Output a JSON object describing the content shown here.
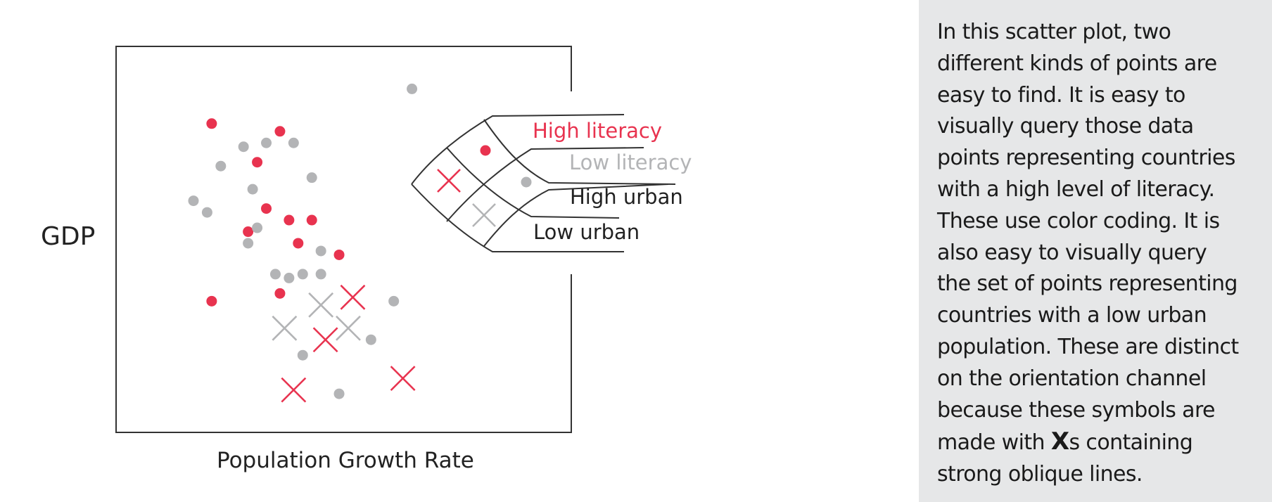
{
  "chart_data": {
    "type": "scatter",
    "xlabel": "Population Growth Rate",
    "ylabel": "GDP",
    "legend_placement": "right",
    "colors": {
      "high_literacy": "#e8334f",
      "low_literacy": "#b3b4b6",
      "axes": "#333333"
    },
    "legend": [
      {
        "label": "High literacy",
        "color": "#e8334f"
      },
      {
        "label": "Low literacy",
        "color": "#b3b4b6"
      },
      {
        "label": "High urban",
        "color": "#222222"
      },
      {
        "label": "Low urban",
        "color": "#222222"
      }
    ],
    "series": [
      {
        "name": "High literacy",
        "marker": "dot",
        "color": "#e8334f",
        "points": [
          [
            2.1,
            8.0
          ],
          [
            3.6,
            7.8
          ],
          [
            3.1,
            7.0
          ],
          [
            3.3,
            5.8
          ],
          [
            3.8,
            5.5
          ],
          [
            4.3,
            5.5
          ],
          [
            2.9,
            5.2
          ],
          [
            4.0,
            4.9
          ],
          [
            4.9,
            4.6
          ],
          [
            3.6,
            3.6
          ],
          [
            2.1,
            3.4
          ]
        ]
      },
      {
        "name": "Low literacy",
        "marker": "dot",
        "color": "#b3b4b6",
        "points": [
          [
            6.5,
            8.9
          ],
          [
            3.3,
            7.5
          ],
          [
            3.9,
            7.5
          ],
          [
            2.8,
            7.4
          ],
          [
            2.3,
            6.9
          ],
          [
            4.3,
            6.6
          ],
          [
            3.0,
            6.3
          ],
          [
            1.7,
            6.0
          ],
          [
            2.0,
            5.7
          ],
          [
            3.1,
            5.3
          ],
          [
            2.9,
            4.9
          ],
          [
            4.5,
            4.7
          ],
          [
            3.5,
            4.1
          ],
          [
            3.8,
            4.0
          ],
          [
            4.1,
            4.1
          ],
          [
            4.5,
            4.1
          ],
          [
            6.1,
            3.4
          ],
          [
            5.6,
            2.4
          ],
          [
            4.1,
            2.0
          ],
          [
            4.9,
            1.0
          ]
        ]
      },
      {
        "name": "High literacy, Low urban",
        "marker": "x",
        "color": "#e8334f",
        "points": [
          [
            5.2,
            3.5
          ],
          [
            4.6,
            2.4
          ],
          [
            3.9,
            1.1
          ],
          [
            6.3,
            1.4
          ]
        ]
      },
      {
        "name": "Low literacy, Low urban",
        "marker": "x",
        "color": "#b3b4b6",
        "points": [
          [
            4.5,
            3.3
          ],
          [
            3.7,
            2.7
          ],
          [
            5.1,
            2.7
          ]
        ]
      }
    ],
    "xlim": [
      0,
      10
    ],
    "ylim": [
      0,
      10
    ]
  },
  "caption": {
    "lines": [
      "In this scatter plot, two",
      "different kinds of points are",
      "easy to find. It is easy to",
      "visually query those data",
      "points representing countries",
      "with a high level of literacy.",
      "These use color coding. It is",
      "also easy to visually query",
      "the set of points representing",
      "countries with a low urban",
      "population. These are distinct",
      "on the orientation channel",
      "because these symbols are"
    ],
    "line14_before": "made with ",
    "line14_strong": "X",
    "line14_after": "s containing",
    "line15": "strong oblique lines."
  }
}
